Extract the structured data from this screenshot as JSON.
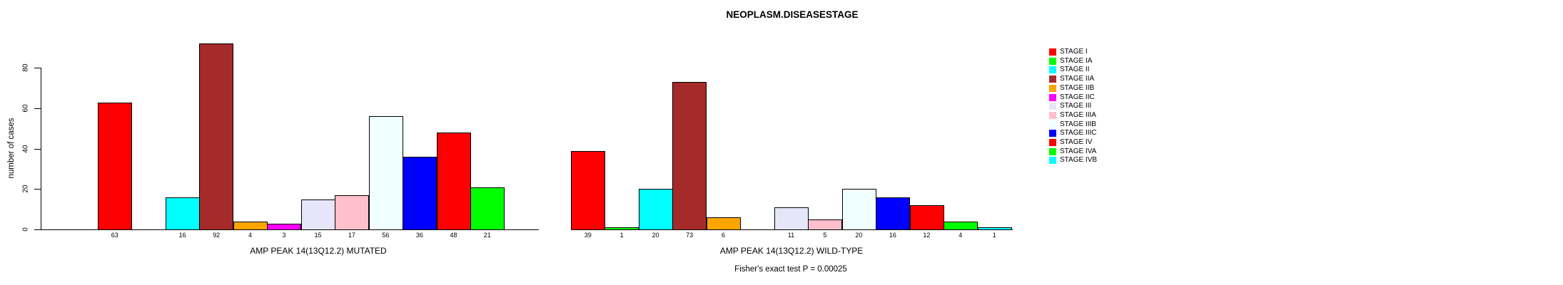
{
  "chart_data": {
    "type": "bar",
    "title": "NEOPLASM.DISEASESTAGE",
    "ylabel": "number of cases",
    "xlabel": "",
    "ylim": [
      0,
      92
    ],
    "yticks": [
      0,
      20,
      40,
      60,
      80
    ],
    "grid": false,
    "legend_position": "right",
    "categories": [
      "STAGE I",
      "STAGE IA",
      "STAGE II",
      "STAGE IIA",
      "STAGE IIB",
      "STAGE IIC",
      "STAGE III",
      "STAGE IIIA",
      "STAGE IIIB",
      "STAGE IIIC",
      "STAGE IV",
      "STAGE IVA",
      "STAGE IVB"
    ],
    "colors": [
      "#FF0000",
      "#00FF00",
      "#00FFFF",
      "#A52A2A",
      "#FFA500",
      "#FF00FF",
      "#E6E6FA",
      "#FFC0CB",
      "#F0FFFF",
      "#0000FF",
      "#FF0000",
      "#00FF00",
      "#00FFFF"
    ],
    "series": [
      {
        "name": "AMP PEAK 14(13Q12.2) MUTATED",
        "values": [
          63,
          null,
          16,
          92,
          4,
          3,
          15,
          17,
          56,
          36,
          48,
          21,
          null
        ]
      },
      {
        "name": "AMP PEAK 14(13Q12.2) WILD-TYPE",
        "values": [
          39,
          1,
          20,
          73,
          6,
          null,
          11,
          5,
          20,
          16,
          12,
          4,
          1
        ]
      }
    ],
    "annotation": "Fisher's exact test P = 0.00025",
    "axis_color": "#000000",
    "background_color": "#FFFFFF"
  }
}
